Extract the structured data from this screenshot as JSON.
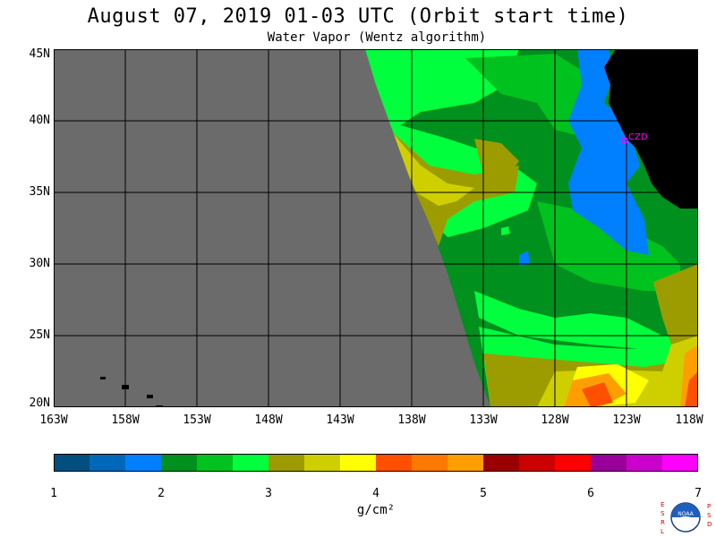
{
  "title": "August 07, 2019  01-03 UTC  (Orbit start time)",
  "subtitle": "Water Vapor (Wentz algorithm)",
  "map": {
    "lat_labels": [
      "45N",
      "40N",
      "35N",
      "30N",
      "25N",
      "20N"
    ],
    "lon_labels": [
      "163W",
      "158W",
      "153W",
      "148W",
      "143W",
      "138W",
      "133W",
      "128W",
      "123W",
      "118W"
    ],
    "station_label": "CZD",
    "colors": {
      "no_data": "#6b6b6b",
      "land": "#000000",
      "station": "#ff00ff"
    }
  },
  "colorbar": {
    "tick_labels": [
      "1",
      "2",
      "3",
      "4",
      "5",
      "6",
      "7"
    ],
    "units_label": "g/cm²",
    "colors": [
      "#004f7f",
      "#0068b8",
      "#0080ff",
      "#00901e",
      "#00c21e",
      "#00ff3c",
      "#9c9c00",
      "#cfcf00",
      "#ffff00",
      "#ff5000",
      "#ff7800",
      "#ff9e00",
      "#9a0000",
      "#cd0000",
      "#ff0000",
      "#990099",
      "#cc00cc",
      "#ff00ff"
    ]
  },
  "logo": {
    "left_letters": "ESRL",
    "right_letters": "PSD",
    "center_text": "NOAA"
  }
}
